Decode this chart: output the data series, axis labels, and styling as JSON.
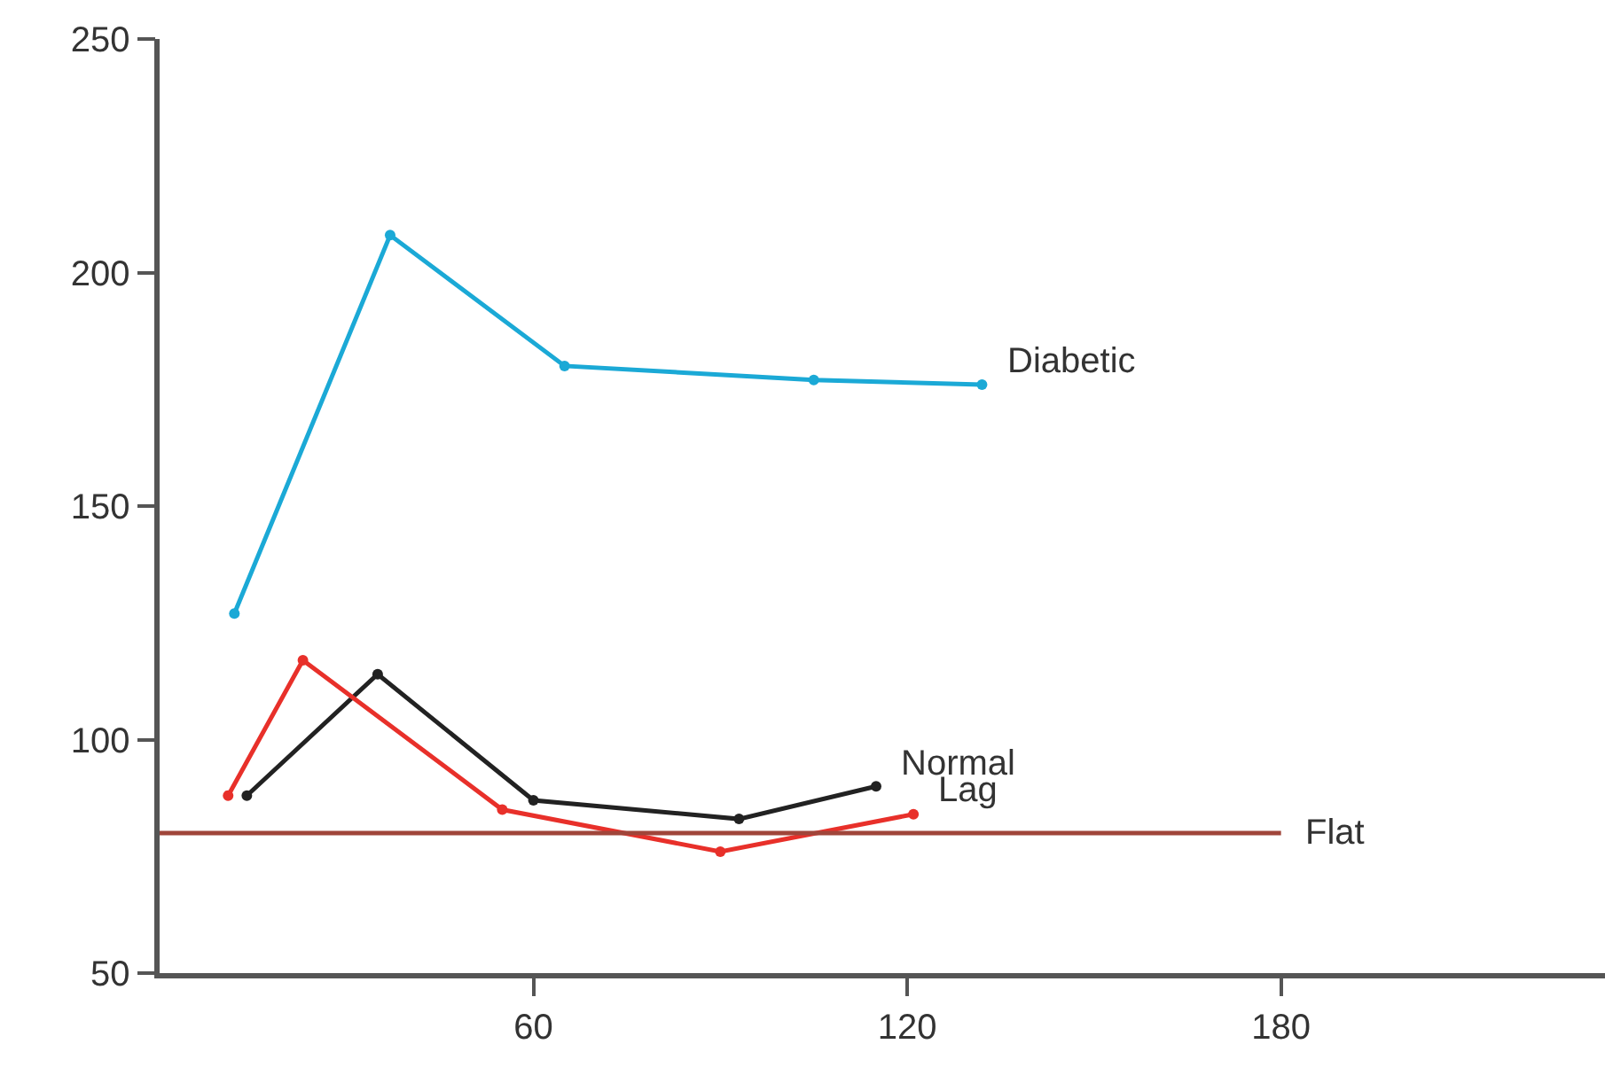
{
  "chart_data": {
    "type": "line",
    "series": [
      {
        "name": "Diabetic",
        "color": "#1ba9d6",
        "x": [
          12,
          37,
          65,
          105,
          132
        ],
        "values": [
          127,
          208,
          180,
          177,
          176
        ],
        "marker": "circle"
      },
      {
        "name": "Normal",
        "color": "#222222",
        "x": [
          14,
          35,
          60,
          93,
          115
        ],
        "values": [
          88,
          114,
          87,
          83,
          90
        ],
        "marker": "circle"
      },
      {
        "name": "Lag",
        "color": "#e8302a",
        "x": [
          11,
          23,
          55,
          90,
          121
        ],
        "values": [
          88,
          117,
          85,
          76,
          84
        ],
        "marker": "circle"
      },
      {
        "name": "Flat",
        "color": "#a0453a",
        "x": [
          0,
          180
        ],
        "values": [
          80,
          80
        ],
        "marker": "none"
      }
    ],
    "xlim": [
      0,
      232
    ],
    "xticks": [
      60,
      120,
      180
    ],
    "ylim": [
      50,
      250
    ],
    "yticks": [
      50,
      100,
      150,
      200,
      250
    ],
    "line_style": "solid"
  }
}
